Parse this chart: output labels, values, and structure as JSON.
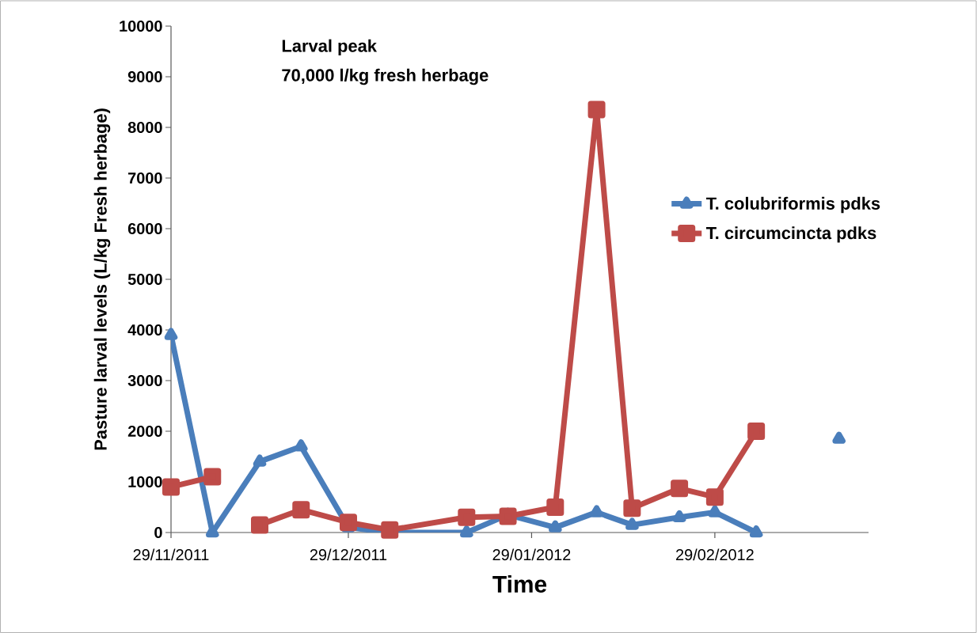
{
  "chart_data": {
    "type": "line",
    "xlabel": "Time",
    "ylabel": "Pasture larval levels (L/kg Fresh herbage)",
    "annotations": [
      "Larval peak",
      "70,000 l/kg fresh herbage"
    ],
    "xlim": [
      "2011-11-29",
      "2012-03-26"
    ],
    "xticks": [
      {
        "value": "2011-11-29",
        "label": "29/11/2011"
      },
      {
        "value": "2011-12-29",
        "label": "29/12/2011"
      },
      {
        "value": "2012-01-29",
        "label": "29/01/2012"
      },
      {
        "value": "2012-02-29",
        "label": "29/02/2012"
      }
    ],
    "ylim": [
      0,
      10000
    ],
    "yticks": [
      0,
      1000,
      2000,
      3000,
      4000,
      5000,
      6000,
      7000,
      8000,
      9000,
      10000
    ],
    "grid": false,
    "legend": "right",
    "line_style": "solid",
    "series": [
      {
        "name": "T. colubriformis pdks",
        "color": "#4a7ebb",
        "marker": "triangle",
        "x": [
          "2011-11-29",
          "2011-12-06",
          "2011-12-14",
          "2011-12-21",
          "2011-12-29",
          "2012-01-05",
          "2012-01-18",
          "2012-01-25",
          "2012-02-02",
          "2012-02-09",
          "2012-02-15",
          "2012-02-23",
          "2012-02-29",
          "2012-03-07",
          "2012-03-14",
          "2012-03-21"
        ],
        "values": [
          3900,
          0,
          1400,
          1700,
          100,
          0,
          0,
          350,
          100,
          400,
          150,
          300,
          400,
          0,
          null,
          1850
        ]
      },
      {
        "name": "T. circumcincta pdks",
        "color": "#be4b48",
        "marker": "square",
        "x": [
          "2011-11-29",
          "2011-12-06",
          "2011-12-10",
          "2011-12-14",
          "2011-12-21",
          "2011-12-29",
          "2012-01-05",
          "2012-01-18",
          "2012-01-25",
          "2012-02-02",
          "2012-02-09",
          "2012-02-15",
          "2012-02-23",
          "2012-02-29",
          "2012-03-07"
        ],
        "values": [
          900,
          1100,
          null,
          150,
          450,
          200,
          50,
          300,
          320,
          500,
          8350,
          480,
          870,
          700,
          2000
        ]
      }
    ]
  }
}
